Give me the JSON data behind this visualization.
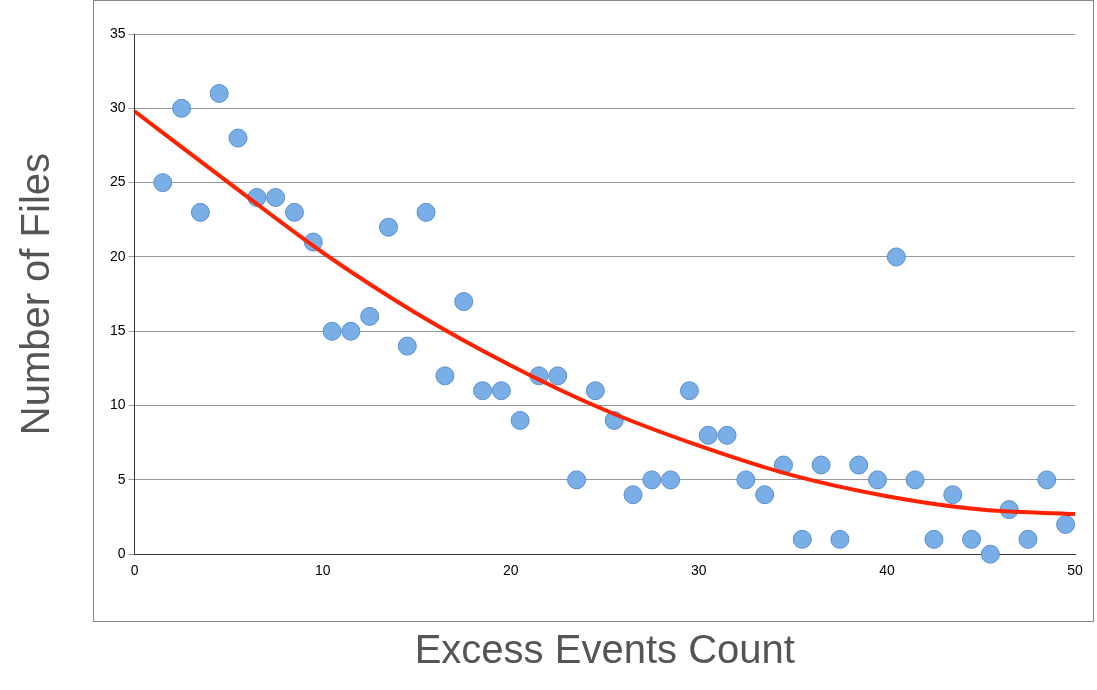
{
  "chart_data": {
    "type": "scatter",
    "xlabel": "Excess Events Count",
    "ylabel": "Number of Files",
    "xlim": [
      0,
      50
    ],
    "xticks": [
      0,
      10,
      20,
      30,
      40,
      50
    ],
    "ylim": [
      0,
      35
    ],
    "yticks": [
      0,
      5,
      10,
      15,
      20,
      25,
      30,
      35
    ],
    "grid": "y",
    "legend": false,
    "series": [
      {
        "marker": "circle",
        "color": "#7aaee6",
        "x": [
          1.5,
          2.5,
          3.5,
          4.5,
          5.5,
          6.5,
          7.5,
          8.5,
          9.5,
          10.5,
          11.5,
          12.5,
          13.5,
          14.5,
          15.5,
          16.5,
          17.5,
          18.5,
          19.5,
          20.5,
          21.5,
          22.5,
          23.5,
          24.5,
          25.5,
          26.5,
          27.5,
          28.5,
          29.5,
          30.5,
          31.5,
          32.5,
          33.5,
          34.5,
          35.5,
          36.5,
          37.5,
          38.5,
          39.5,
          40.5,
          41.5,
          42.5,
          43.5,
          44.5,
          45.5,
          46.5,
          47.5,
          48.5,
          49.5
        ],
        "values": [
          25,
          30,
          23,
          31,
          28,
          24,
          24,
          23,
          21,
          15,
          15,
          16,
          22,
          14,
          23,
          12,
          17,
          11,
          11,
          9,
          12,
          12,
          5,
          11,
          9,
          4,
          5,
          5,
          11,
          8,
          8,
          5,
          4,
          6,
          1,
          6,
          1,
          6,
          5,
          20,
          5,
          1,
          4,
          1,
          0,
          3,
          1,
          5,
          2
        ]
      },
      {
        "type": "line",
        "marker": "none",
        "color": "#ff2200",
        "x": [
          0,
          5,
          10,
          15,
          20,
          25,
          30,
          35,
          40,
          45,
          50
        ],
        "values": [
          29.8,
          25,
          20.3,
          16.2,
          12.7,
          9.7,
          7.3,
          5.3,
          3.9,
          3.0,
          2.7
        ]
      }
    ]
  }
}
